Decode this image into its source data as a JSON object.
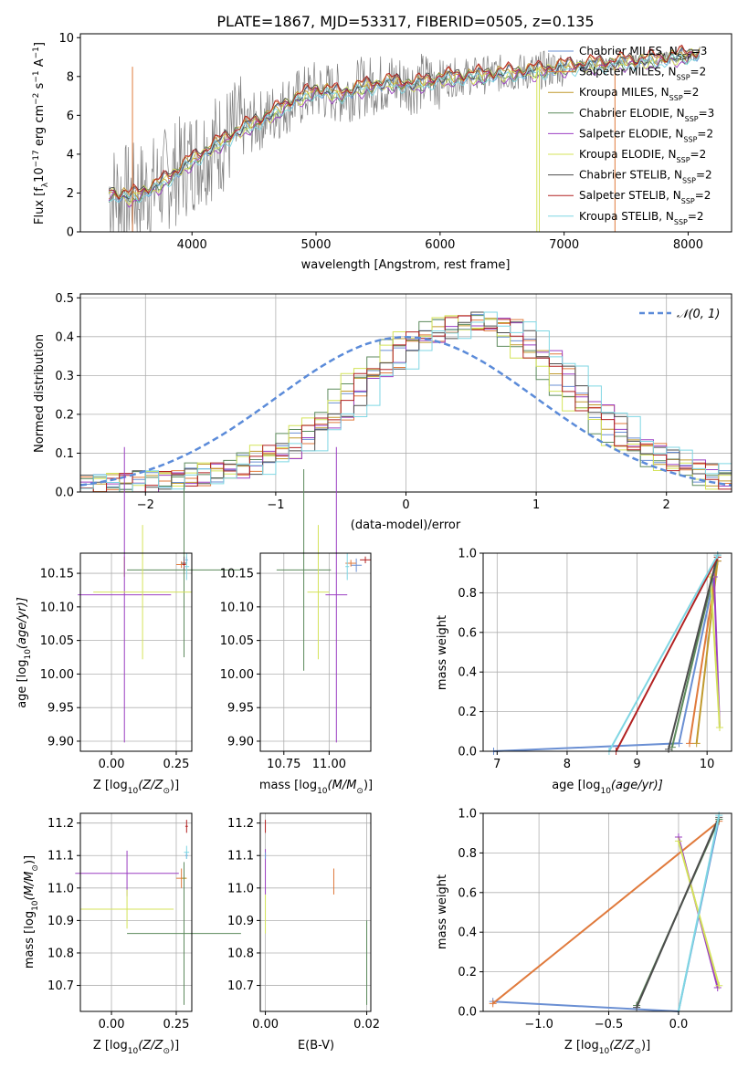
{
  "figure": {
    "title": "PLATE=1867, MJD=53317, FIBERID=0505, z=0.135"
  },
  "colors": {
    "data": "#7f7f7f",
    "series": [
      "#6a8fd3",
      "#e07a3c",
      "#c19a2e",
      "#5c8a5c",
      "#9b3fc2",
      "#d4e35a",
      "#4d4d4d",
      "#b22222",
      "#7fd6e3"
    ],
    "pink": "#e88aa8",
    "gaussian": "#5b8bd9"
  },
  "models": [
    "Chabrier MILES, N_SSP=3",
    "Salpeter MILES, N_SSP=2",
    "Kroupa MILES, N_SSP=2",
    "Chabrier ELODIE, N_SSP=3",
    "Salpeter ELODIE, N_SSP=2",
    "Kroupa ELODIE, N_SSP=2",
    "Chabrier STELIB, N_SSP=2",
    "Salpeter STELIB, N_SSP=2",
    "Kroupa STELIB, N_SSP=2"
  ],
  "legend": {
    "spectrum": [
      {
        "main": "Chabrier MILES, N",
        "sub": "SSP",
        "tail": "=3"
      },
      {
        "main": "Salpeter MILES, N",
        "sub": "SSP",
        "tail": "=2"
      },
      {
        "main": "Kroupa MILES, N",
        "sub": "SSP",
        "tail": "=2"
      },
      {
        "main": "Chabrier ELODIE, N",
        "sub": "SSP",
        "tail": "=3"
      },
      {
        "main": "Salpeter ELODIE, N",
        "sub": "SSP",
        "tail": "=2"
      },
      {
        "main": "Kroupa ELODIE, N",
        "sub": "SSP",
        "tail": "=2"
      },
      {
        "main": "Chabrier STELIB, N",
        "sub": "SSP",
        "tail": "=2"
      },
      {
        "main": "Salpeter STELIB, N",
        "sub": "SSP",
        "tail": "=2"
      },
      {
        "main": "Kroupa STELIB, N",
        "sub": "SSP",
        "tail": "=2"
      }
    ],
    "gaussian": "𝒩(0, 1)"
  },
  "labels": {
    "spec_x": "wavelength [Angstrom, rest frame]",
    "spec_y": "Flux [f_λ 10^-17 erg cm^-2 s^-1 A^-1]",
    "spec_y_parts": {
      "a": "Flux [f",
      "b": "λ",
      "c": "10",
      "d": "−17",
      "e": " erg cm",
      "f": "−2",
      "g": " s",
      "h": "−1",
      "i": " A",
      "j": "−1",
      "k": "]"
    },
    "hist_x": "(data-model)/error",
    "hist_y": "Normed distribution",
    "z_label": {
      "a": "Z [log",
      "b": "10",
      "c": "(Z/Z",
      "d": "⊙",
      "e": ")]"
    },
    "age_label": {
      "a": "age  [log",
      "b": "10",
      "c": "(age/yr)]"
    },
    "mass_label": {
      "a": "mass [log",
      "b": "10",
      "c": "(M/M",
      "d": "⊙",
      "e": ")]"
    },
    "ebv_label": "E(B-V)",
    "mass_weight": "mass weight"
  },
  "chart_data": [
    {
      "id": "spectrum",
      "type": "line",
      "title": "PLATE=1867, MJD=53317, FIBERID=0505, z=0.135",
      "xlabel": "wavelength [Angstrom, rest frame]",
      "ylabel": "Flux [f_λ 10^-17 erg cm^-2 s^-1 A^-1]",
      "xlim": [
        3100,
        8350
      ],
      "ylim": [
        0,
        10.2
      ],
      "xticks": [
        4000,
        5000,
        6000,
        7000,
        8000
      ],
      "yticks": [
        0,
        2,
        4,
        6,
        8,
        10
      ],
      "grid": false,
      "legend": "top-right",
      "x": [
        3330,
        3500,
        3700,
        3900,
        4000,
        4200,
        4400,
        4600,
        4800,
        5000,
        5200,
        5400,
        5600,
        5800,
        6000,
        6200,
        6400,
        6600,
        6800,
        7000,
        7200,
        7400,
        7600,
        7800,
        8000,
        8100
      ],
      "model_flux": [
        2.0,
        1.8,
        2.3,
        3.2,
        3.7,
        4.5,
        5.3,
        5.9,
        6.7,
        7.3,
        7.1,
        7.5,
        7.7,
        7.6,
        7.9,
        8.0,
        8.1,
        8.2,
        8.3,
        8.5,
        8.6,
        8.7,
        8.8,
        8.9,
        9.1,
        9.2
      ],
      "data_scatter_note": "",
      "series_offsets": [
        0.0,
        0.15,
        0.05,
        -0.1,
        -0.2,
        -0.05,
        0.1,
        0.2,
        -0.15
      ]
    },
    {
      "id": "residual-hist",
      "type": "bar",
      "xlabel": "(data-model)/error",
      "ylabel": "Normed distribution",
      "xlim": [
        -2.5,
        2.5
      ],
      "ylim": [
        0,
        0.51
      ],
      "xticks": [
        -2,
        -1,
        0,
        1,
        2
      ],
      "yticks": [
        0.0,
        0.1,
        0.2,
        0.3,
        0.4,
        0.5
      ],
      "grid": true,
      "legend": "top-right",
      "bin_edges_start": -2.5,
      "bin_width": 0.1,
      "base_hist": [
        0.02,
        0.03,
        0.02,
        0.03,
        0.03,
        0.04,
        0.04,
        0.05,
        0.05,
        0.06,
        0.07,
        0.08,
        0.1,
        0.11,
        0.13,
        0.15,
        0.18,
        0.21,
        0.24,
        0.28,
        0.32,
        0.34,
        0.37,
        0.39,
        0.41,
        0.42,
        0.43,
        0.44,
        0.44,
        0.43,
        0.42,
        0.4,
        0.37,
        0.34,
        0.3,
        0.27,
        0.23,
        0.2,
        0.17,
        0.14,
        0.12,
        0.1,
        0.09,
        0.08,
        0.06,
        0.05,
        0.04,
        0.03,
        0.03,
        0.02
      ],
      "shifts": [
        0.2,
        0.3,
        0.25,
        0.15,
        0.35,
        0.1,
        0.3,
        0.2,
        0.4
      ],
      "gaussian": {
        "mu": 0,
        "sigma": 1
      }
    },
    {
      "id": "age-vs-Z",
      "type": "scatter",
      "xlabel": "Z [log10(Z/Z⊙)]",
      "ylabel": "age [log10(age/yr)]",
      "xlim": [
        -0.12,
        0.31
      ],
      "ylim": [
        9.885,
        10.18
      ],
      "xticks": [
        0.0,
        0.25
      ],
      "yticks": [
        9.9,
        9.95,
        10.0,
        10.05,
        10.1,
        10.15
      ],
      "grid": true,
      "points": [
        {
          "series": 0,
          "x": 0.29,
          "y": 10.17,
          "xerr": 0.005,
          "yerr": 0.005
        },
        {
          "series": 1,
          "x": 0.27,
          "y": 10.163,
          "xerr": 0.02,
          "yerr": 0.005
        },
        {
          "series": 2,
          "x": 0.05,
          "y": 10.16,
          "xerr": 0.0,
          "yerr": 0.015
        },
        {
          "series": 3,
          "x": 0.28,
          "y": 10.155,
          "xerr": 0.22,
          "yerr": 0.13
        },
        {
          "series": 4,
          "x": 0.05,
          "y": 10.118,
          "xerr": 0.18,
          "yerr": 0.22
        },
        {
          "series": 5,
          "x": 0.12,
          "y": 10.122,
          "xerr": 0.19,
          "yerr": 0.1
        },
        {
          "series": 6,
          "x": 0.28,
          "y": 10.165,
          "xerr": 0.01,
          "yerr": 0.01
        },
        {
          "series": 7,
          "x": 0.28,
          "y": 10.163,
          "xerr": 0.005,
          "yerr": 0.005
        },
        {
          "series": 8,
          "x": 0.29,
          "y": 10.16,
          "xerr": 0.01,
          "yerr": 0.02
        }
      ]
    },
    {
      "id": "age-vs-mass",
      "type": "scatter",
      "xlabel": "mass [log10(M/M⊙)]",
      "ylabel": "",
      "xlim": [
        10.62,
        11.23
      ],
      "ylim": [
        9.885,
        10.18
      ],
      "xticks": [
        10.75,
        11.0
      ],
      "yticks": [
        9.9,
        9.95,
        10.0,
        10.05,
        10.1,
        10.15
      ],
      "grid": true,
      "points": [
        {
          "series": 0,
          "x": 11.15,
          "y": 10.162,
          "xerr": 0.03,
          "yerr": 0.01
        },
        {
          "series": 1,
          "x": 11.12,
          "y": 10.165,
          "xerr": 0.03,
          "yerr": 0.005
        },
        {
          "series": 3,
          "x": 10.86,
          "y": 10.155,
          "xerr": 0.15,
          "yerr": 0.15
        },
        {
          "series": 4,
          "x": 11.04,
          "y": 10.118,
          "xerr": 0.06,
          "yerr": 0.22
        },
        {
          "series": 5,
          "x": 10.94,
          "y": 10.122,
          "xerr": 0.06,
          "yerr": 0.1
        },
        {
          "series": 7,
          "x": 11.2,
          "y": 10.17,
          "xerr": 0.03,
          "yerr": 0.005
        },
        {
          "series": 8,
          "x": 11.1,
          "y": 10.16,
          "xerr": 0.01,
          "yerr": 0.02
        }
      ]
    },
    {
      "id": "massweight-vs-age",
      "type": "line",
      "xlabel": "age [log10(age/yr)]",
      "ylabel": "mass weight",
      "xlim": [
        6.8,
        10.35
      ],
      "ylim": [
        0,
        1.0
      ],
      "xticks": [
        7,
        8,
        9,
        10
      ],
      "yticks": [
        0.0,
        0.2,
        0.4,
        0.6,
        0.8,
        1.0
      ],
      "grid": true,
      "series": [
        {
          "series": 0,
          "x": [
            6.95,
            9.6,
            10.15
          ],
          "y": [
            0.0,
            0.04,
            0.96
          ]
        },
        {
          "series": 1,
          "x": [
            9.75,
            10.15
          ],
          "y": [
            0.04,
            0.96
          ]
        },
        {
          "series": 2,
          "x": [
            9.85,
            10.15
          ],
          "y": [
            0.04,
            0.96
          ]
        },
        {
          "series": 3,
          "x": [
            9.5,
            10.15
          ],
          "y": [
            0.02,
            0.98
          ]
        },
        {
          "series": 4,
          "x": [
            10.1,
            10.18
          ],
          "y": [
            0.88,
            0.12
          ]
        },
        {
          "series": 5,
          "x": [
            10.05,
            10.18
          ],
          "y": [
            0.88,
            0.12
          ]
        },
        {
          "series": 6,
          "x": [
            9.45,
            10.15
          ],
          "y": [
            0.01,
            0.99
          ]
        },
        {
          "series": 7,
          "x": [
            8.7,
            10.15
          ],
          "y": [
            0.0,
            0.98
          ]
        },
        {
          "series": 8,
          "x": [
            8.6,
            10.15
          ],
          "y": [
            0.0,
            0.99
          ]
        }
      ]
    },
    {
      "id": "mass-vs-Z",
      "type": "scatter",
      "xlabel": "Z [log10(Z/Z⊙)]",
      "ylabel": "mass [log10(M/M⊙)]",
      "xlim": [
        -0.12,
        0.31
      ],
      "ylim": [
        10.62,
        11.23
      ],
      "xticks": [
        0.0,
        0.25
      ],
      "yticks": [
        10.7,
        10.8,
        10.9,
        11.0,
        11.1,
        11.2
      ],
      "grid": true,
      "points": [
        {
          "series": 0,
          "x": 0.29,
          "y": 11.1,
          "xerr": 0.005,
          "yerr": 0.01
        },
        {
          "series": 1,
          "x": 0.27,
          "y": 11.03,
          "xerr": 0.02,
          "yerr": 0.03
        },
        {
          "series": 2,
          "x": 0.28,
          "y": 11.03,
          "xerr": 0.01,
          "yerr": 0.01
        },
        {
          "series": 3,
          "x": 0.28,
          "y": 10.86,
          "xerr": 0.22,
          "yerr": 0.22
        },
        {
          "series": 4,
          "x": 0.06,
          "y": 11.045,
          "xerr": 0.2,
          "yerr": 0.07
        },
        {
          "series": 5,
          "x": 0.06,
          "y": 10.935,
          "xerr": 0.18,
          "yerr": 0.06
        },
        {
          "series": 7,
          "x": 0.29,
          "y": 11.19,
          "xerr": 0.005,
          "yerr": 0.02
        },
        {
          "series": 8,
          "x": 0.29,
          "y": 11.11,
          "xerr": 0.01,
          "yerr": 0.02
        }
      ]
    },
    {
      "id": "mass-vs-ebv",
      "type": "scatter",
      "xlabel": "E(B-V)",
      "ylabel": "",
      "xlim": [
        -0.001,
        0.0208
      ],
      "ylim": [
        10.62,
        11.23
      ],
      "xticks": [
        0.0,
        0.02
      ],
      "yticks": [
        10.7,
        10.8,
        10.9,
        11.0,
        11.1,
        11.2
      ],
      "grid": true,
      "points": [
        {
          "series": 7,
          "x": 0.0,
          "y": 11.19,
          "xerr": 0.0,
          "yerr": 0.02
        },
        {
          "series": 4,
          "x": 0.0,
          "y": 11.05,
          "xerr": 0.0,
          "yerr": 0.07
        },
        {
          "series": 5,
          "x": 0.0,
          "y": 10.92,
          "xerr": 0.0,
          "yerr": 0.06
        },
        {
          "series": 1,
          "x": 0.0135,
          "y": 11.02,
          "xerr": 0.0,
          "yerr": 0.04
        },
        {
          "series": 3,
          "x": 0.02,
          "y": 10.77,
          "xerr": 0.0,
          "yerr": 0.13
        },
        {
          "series": 0,
          "x": 0.0,
          "y": 11.1,
          "xerr": 0.0,
          "yerr": 0.01
        }
      ]
    },
    {
      "id": "massweight-vs-Z",
      "type": "line",
      "xlabel": "Z [log10(Z/Z⊙)]",
      "ylabel": "mass weight",
      "xlim": [
        -1.4,
        0.38
      ],
      "ylim": [
        0,
        1.0
      ],
      "xticks": [
        -1.0,
        -0.5,
        0.0
      ],
      "yticks": [
        0.0,
        0.2,
        0.4,
        0.6,
        0.8,
        1.0
      ],
      "grid": true,
      "series": [
        {
          "series": 0,
          "x": [
            -1.33,
            0.0,
            0.29
          ],
          "y": [
            0.05,
            0.0,
            0.97
          ]
        },
        {
          "series": 1,
          "x": [
            -1.33,
            0.29
          ],
          "y": [
            0.04,
            0.96
          ]
        },
        {
          "series": 3,
          "x": [
            -0.3,
            0.29
          ],
          "y": [
            0.03,
            0.97
          ]
        },
        {
          "series": 4,
          "x": [
            0.0,
            0.28
          ],
          "y": [
            0.88,
            0.12
          ]
        },
        {
          "series": 5,
          "x": [
            0.0,
            0.29
          ],
          "y": [
            0.86,
            0.13
          ]
        },
        {
          "series": 6,
          "x": [
            -0.3,
            0.29
          ],
          "y": [
            0.02,
            0.98
          ]
        },
        {
          "series": 8,
          "x": [
            0.0,
            0.29
          ],
          "y": [
            0.0,
            0.99
          ]
        }
      ]
    }
  ]
}
